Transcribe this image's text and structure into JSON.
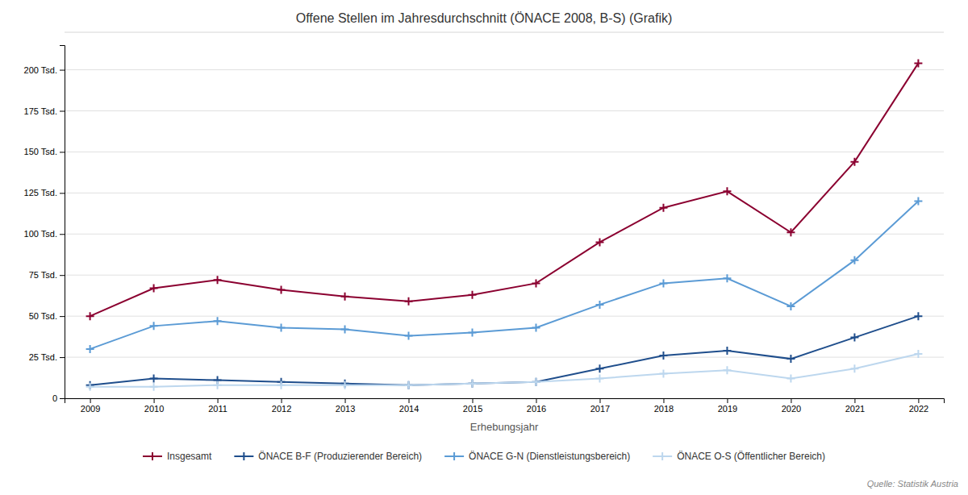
{
  "chart_data": {
    "type": "line",
    "title": "Offene Stellen im Jahresdurchschnitt (ÖNACE 2008, B-S) (Grafik)",
    "xlabel": "Erhebungsjahr",
    "annotations": [
      "Quelle: Statistik Austria"
    ],
    "x": [
      2009,
      2010,
      2011,
      2012,
      2013,
      2014,
      2015,
      2016,
      2017,
      2018,
      2019,
      2020,
      2021,
      2022
    ],
    "series": [
      {
        "name": "Insgesamt",
        "color": "#8B0030",
        "values": [
          50,
          67,
          72,
          66,
          62,
          59,
          63,
          70,
          95,
          116,
          126,
          101,
          144,
          204
        ]
      },
      {
        "name": "ÖNACE B-F (Produzierender Bereich)",
        "color": "#1F4E8C",
        "values": [
          8,
          12,
          11,
          10,
          9,
          8,
          9,
          10,
          18,
          26,
          29,
          24,
          37,
          50
        ]
      },
      {
        "name": "ÖNACE G-N (Dienstleistungsbereich)",
        "color": "#5B9BD5",
        "values": [
          30,
          44,
          47,
          43,
          42,
          38,
          40,
          43,
          57,
          70,
          73,
          56,
          84,
          120
        ]
      },
      {
        "name": "ÖNACE O-S (Öffentlicher Bereich)",
        "color": "#BDD7EE",
        "values": [
          7,
          7,
          8,
          8,
          8,
          8,
          9,
          10,
          12,
          15,
          17,
          12,
          18,
          27
        ]
      }
    ],
    "xlim": [
      2008.6,
      2022.4
    ],
    "xticks": [
      2009,
      2010,
      2011,
      2012,
      2013,
      2014,
      2015,
      2016,
      2017,
      2018,
      2019,
      2020,
      2021,
      2022
    ],
    "ylim": [
      0,
      215
    ],
    "yticks": [
      0,
      {
        "value": 25,
        "label": "25 Tsd."
      },
      {
        "value": 50,
        "label": "50 Tsd."
      },
      {
        "value": 75,
        "label": "75 Tsd."
      },
      {
        "value": 100,
        "label": "100 Tsd."
      },
      {
        "value": 125,
        "label": "125 Tsd."
      },
      {
        "value": 150,
        "label": "150 Tsd."
      },
      {
        "value": 175,
        "label": "175 Tsd."
      },
      {
        "value": 200,
        "label": "200 Tsd."
      }
    ],
    "grid": true,
    "legend": "bottom",
    "marker": "plus"
  }
}
